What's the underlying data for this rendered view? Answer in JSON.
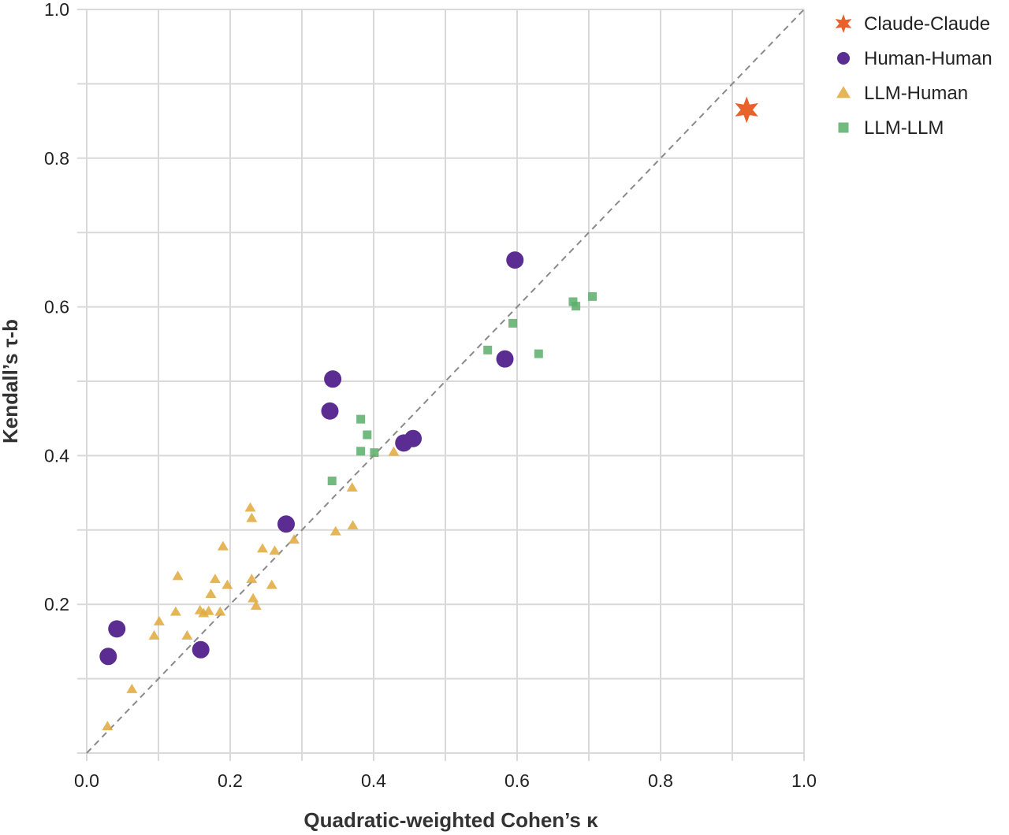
{
  "chart_data": {
    "type": "scatter",
    "xlabel": "Quadratic-weighted Cohen’s κ",
    "ylabel": "Kendall’s τ-b",
    "xlim": [
      0,
      1
    ],
    "ylim": [
      0,
      1
    ],
    "x_ticks": [
      "0.0",
      "0.2",
      "0.4",
      "0.6",
      "0.8",
      "1.0"
    ],
    "y_ticks": [
      "0.2",
      "0.4",
      "0.6",
      "0.8",
      "1.0"
    ],
    "grid": true,
    "reference_line": "y = x (dashed)",
    "legend_position": "top-right",
    "series": [
      {
        "name": "Claude-Claude",
        "marker": "star",
        "color": "#E8622C",
        "points": [
          [
            0.92,
            0.865
          ]
        ]
      },
      {
        "name": "Human-Human",
        "marker": "circle",
        "color": "#5B2C91",
        "points": [
          [
            0.03,
            0.13
          ],
          [
            0.042,
            0.167
          ],
          [
            0.159,
            0.139
          ],
          [
            0.278,
            0.308
          ],
          [
            0.339,
            0.46
          ],
          [
            0.343,
            0.503
          ],
          [
            0.442,
            0.417
          ],
          [
            0.455,
            0.423
          ],
          [
            0.583,
            0.53
          ],
          [
            0.597,
            0.663
          ]
        ]
      },
      {
        "name": "LLM-Human",
        "marker": "triangle",
        "color": "#E0A93A",
        "points": [
          [
            0.029,
            0.036
          ],
          [
            0.063,
            0.086
          ],
          [
            0.094,
            0.158
          ],
          [
            0.101,
            0.177
          ],
          [
            0.124,
            0.19
          ],
          [
            0.127,
            0.238
          ],
          [
            0.14,
            0.158
          ],
          [
            0.158,
            0.192
          ],
          [
            0.163,
            0.188
          ],
          [
            0.17,
            0.191
          ],
          [
            0.173,
            0.214
          ],
          [
            0.179,
            0.234
          ],
          [
            0.186,
            0.19
          ],
          [
            0.19,
            0.278
          ],
          [
            0.196,
            0.226
          ],
          [
            0.228,
            0.33
          ],
          [
            0.23,
            0.316
          ],
          [
            0.23,
            0.234
          ],
          [
            0.232,
            0.208
          ],
          [
            0.236,
            0.198
          ],
          [
            0.245,
            0.275
          ],
          [
            0.258,
            0.226
          ],
          [
            0.262,
            0.272
          ],
          [
            0.275,
            0.307
          ],
          [
            0.289,
            0.287
          ],
          [
            0.347,
            0.298
          ],
          [
            0.371,
            0.306
          ],
          [
            0.37,
            0.357
          ],
          [
            0.428,
            0.405
          ]
        ]
      },
      {
        "name": "LLM-LLM",
        "marker": "square",
        "color": "#5BAE6A",
        "points": [
          [
            0.342,
            0.366
          ],
          [
            0.382,
            0.449
          ],
          [
            0.382,
            0.406
          ],
          [
            0.391,
            0.428
          ],
          [
            0.401,
            0.404
          ],
          [
            0.559,
            0.542
          ],
          [
            0.594,
            0.578
          ],
          [
            0.63,
            0.537
          ],
          [
            0.678,
            0.607
          ],
          [
            0.682,
            0.601
          ],
          [
            0.705,
            0.614
          ]
        ]
      }
    ]
  }
}
